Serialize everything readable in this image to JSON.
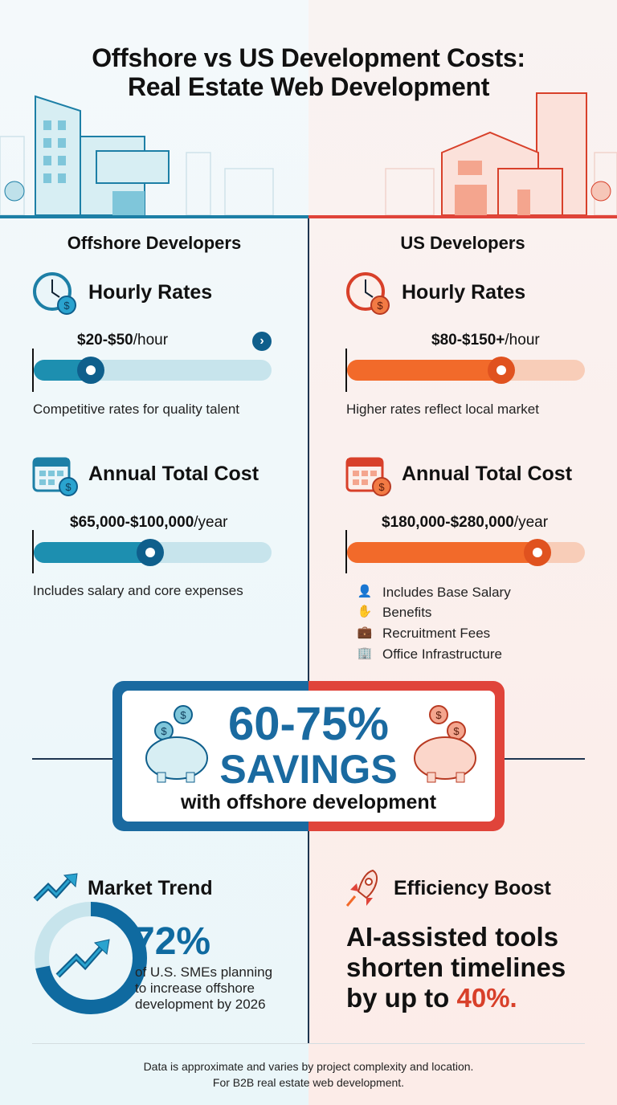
{
  "title": {
    "line1": "Offshore vs US Development Costs:",
    "line2": "Real Estate Web Development"
  },
  "colors": {
    "offshore": "#1d7fa6",
    "offshore_dark": "#0f5f8c",
    "us": "#f26a2a",
    "us_dark": "#d8402a",
    "savings_blue": "#1a6aa0"
  },
  "offshore": {
    "heading": "Offshore Developers",
    "hourly": {
      "title": "Hourly Rates",
      "icon": "clock-dollar-icon",
      "value": "$20-$50",
      "unit": "/hour",
      "level_percent": 24,
      "caption": "Competitive rates for quality talent"
    },
    "annual": {
      "title": "Annual Total Cost",
      "icon": "calendar-dollar-icon",
      "value": "$65,000-$100,000",
      "unit": "/year",
      "level_percent": 49,
      "caption": "Includes salary and core expenses"
    }
  },
  "us": {
    "heading": "US Developers",
    "hourly": {
      "title": "Hourly Rates",
      "icon": "clock-dollar-icon",
      "value": "$80-$150+",
      "unit": "/hour",
      "level_percent": 65,
      "caption": "Higher rates reflect local market"
    },
    "annual": {
      "title": "Annual Total Cost",
      "icon": "calendar-dollar-icon",
      "value": "$180,000-$280,000",
      "unit": "/year",
      "level_percent": 80,
      "items": [
        {
          "icon": "person-icon",
          "label": "Includes Base Salary"
        },
        {
          "icon": "hand-coin-icon",
          "label": "Benefits"
        },
        {
          "icon": "briefcase-icon",
          "label": "Recruitment Fees"
        },
        {
          "icon": "building-icon",
          "label": "Office Infrastructure"
        }
      ]
    }
  },
  "savings": {
    "percent": "60-75%",
    "word": "SAVINGS",
    "sub": "with offshore development"
  },
  "market": {
    "title": "Market Trend",
    "stat": "72%",
    "stat_value": 72,
    "lines": [
      "of U.S. SMEs planning",
      "to increase offshore",
      "development by 2026"
    ]
  },
  "efficiency": {
    "title": "Efficiency Boost",
    "lines": [
      "AI-assisted tools",
      "shorten timelines"
    ],
    "line3_prefix": "by up to ",
    "highlight": "40%."
  },
  "footer": {
    "line1": "Data is approximate and varies by project complexity and location.",
    "line2": "For B2B real estate web development."
  }
}
